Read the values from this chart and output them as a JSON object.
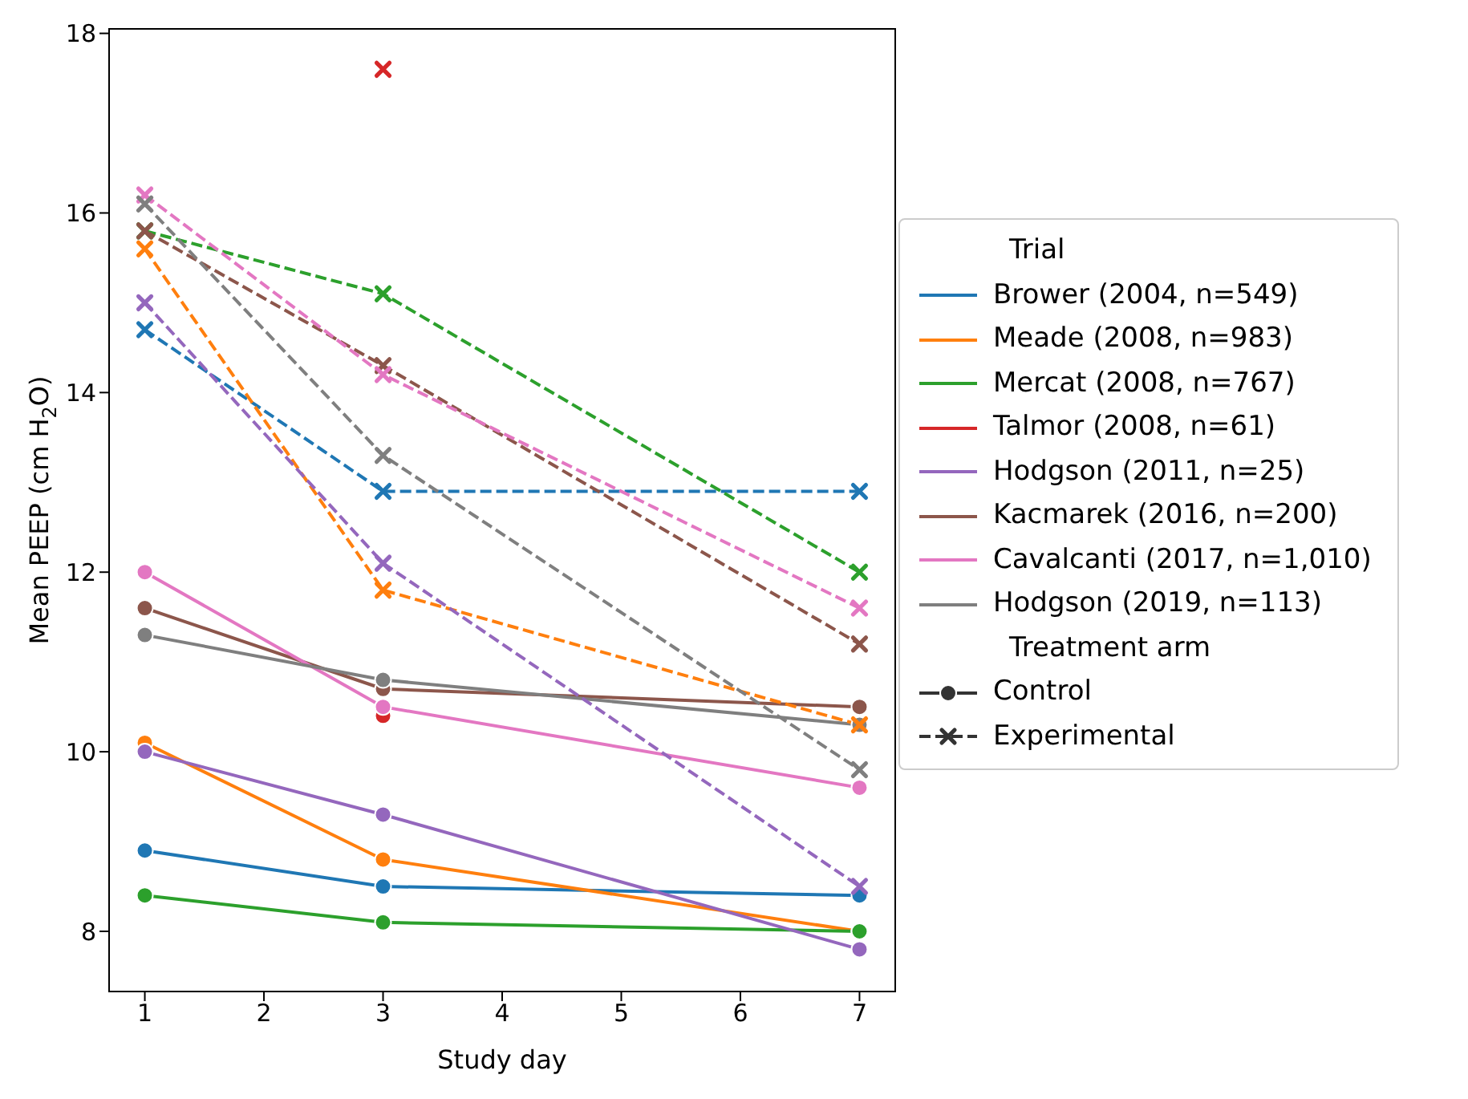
{
  "chart_data": {
    "type": "line",
    "xlabel": "Study day",
    "ylabel": "Mean PEEP (cm H$_{2}$O)",
    "legend_title": "Trial",
    "legend": "right",
    "x": [
      1,
      3,
      7
    ],
    "xlim": [
      0.7,
      7.3
    ],
    "ylim": [
      7.33,
      18.05
    ],
    "xticks": [
      1,
      2,
      3,
      4,
      5,
      6,
      7
    ],
    "yticks": [
      8,
      10,
      12,
      14,
      16,
      18
    ],
    "annotations": [
      "Treatment arm",
      "Control",
      "Experimental"
    ],
    "series": [
      {
        "name": "Brower (2004, n=549)",
        "color": "#1f77b4",
        "values": [
          8.9,
          8.5,
          8.4
        ],
        "line_style": "solid",
        "marker": "circle"
      },
      {
        "name": "Meade (2008, n=983)",
        "color": "#ff7f0e",
        "values": [
          10.1,
          8.8,
          8.0
        ],
        "line_style": "solid",
        "marker": "circle"
      },
      {
        "name": "Mercat (2008, n=767)",
        "color": "#2ca02c",
        "values": [
          8.4,
          8.1,
          8.0
        ],
        "line_style": "solid",
        "marker": "circle"
      },
      {
        "name": "Talmor (2008, n=61)",
        "color": "#d62728",
        "values": [
          null,
          10.4,
          null
        ],
        "line_style": "solid",
        "marker": "circle"
      },
      {
        "name": "Hodgson (2011, n=25)",
        "color": "#9467bd",
        "values": [
          10.0,
          9.3,
          7.8
        ],
        "line_style": "solid",
        "marker": "circle"
      },
      {
        "name": "Kacmarek (2016, n=200)",
        "color": "#8c564b",
        "values": [
          11.6,
          10.7,
          10.5
        ],
        "line_style": "solid",
        "marker": "circle"
      },
      {
        "name": "Cavalcanti (2017, n=1,010)",
        "color": "#e377c2",
        "values": [
          12.0,
          10.5,
          9.6
        ],
        "line_style": "solid",
        "marker": "circle"
      },
      {
        "name": "Hodgson (2019, n=113)",
        "color": "#7f7f7f",
        "values": [
          11.3,
          10.8,
          10.3
        ],
        "line_style": "solid",
        "marker": "circle"
      },
      {
        "color": "#1f77b4",
        "values": [
          14.7,
          12.9,
          12.9
        ],
        "line_style": "dashed",
        "marker": "cross"
      },
      {
        "color": "#ff7f0e",
        "values": [
          15.6,
          11.8,
          10.3
        ],
        "line_style": "dashed",
        "marker": "cross"
      },
      {
        "color": "#2ca02c",
        "values": [
          15.8,
          15.1,
          12.0
        ],
        "line_style": "dashed",
        "marker": "cross"
      },
      {
        "color": "#d62728",
        "values": [
          null,
          17.6,
          null
        ],
        "line_style": "dashed",
        "marker": "cross"
      },
      {
        "color": "#9467bd",
        "values": [
          15.0,
          12.1,
          8.5
        ],
        "line_style": "dashed",
        "marker": "cross"
      },
      {
        "color": "#8c564b",
        "values": [
          15.8,
          14.3,
          11.2
        ],
        "line_style": "dashed",
        "marker": "cross"
      },
      {
        "color": "#e377c2",
        "values": [
          16.2,
          14.2,
          11.6
        ],
        "line_style": "dashed",
        "marker": "cross"
      },
      {
        "color": "#7f7f7f",
        "values": [
          16.1,
          13.3,
          9.8
        ],
        "line_style": "dashed",
        "marker": "cross"
      }
    ]
  }
}
